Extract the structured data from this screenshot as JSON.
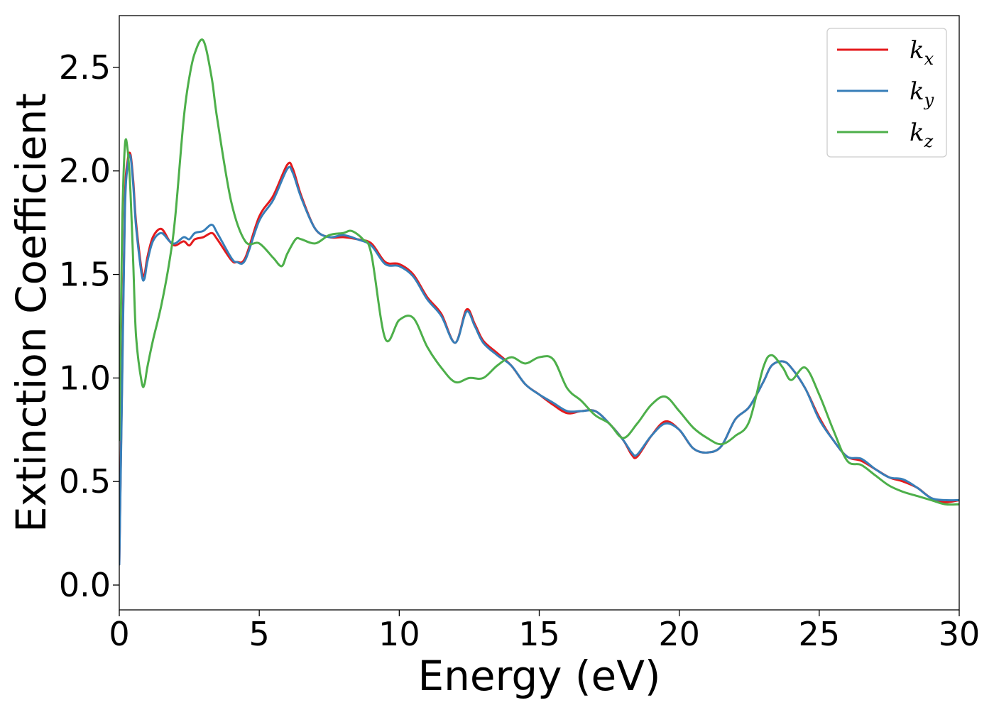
{
  "chart_data": {
    "type": "line",
    "xlabel": "Energy (eV)",
    "ylabel": "Extinction Coefficient",
    "xlim": [
      0,
      30
    ],
    "ylim": [
      -0.12,
      2.75
    ],
    "xticks": [
      0,
      5,
      10,
      15,
      20,
      25,
      30
    ],
    "yticks": [
      0.0,
      0.5,
      1.0,
      1.5,
      2.0,
      2.5
    ],
    "xtick_labels": [
      "0",
      "5",
      "10",
      "15",
      "20",
      "25",
      "30"
    ],
    "ytick_labels": [
      "0.0",
      "0.5",
      "1.0",
      "1.5",
      "2.0",
      "2.5"
    ],
    "grid": false,
    "legend_position": "top-right",
    "series": [
      {
        "name": "k_x",
        "label_main": "k",
        "label_sub": "x",
        "color": "#e41a1c",
        "x": [
          0,
          0.1,
          0.2,
          0.3,
          0.4,
          0.5,
          0.6,
          0.8,
          0.9,
          1.0,
          1.2,
          1.5,
          1.8,
          2.0,
          2.3,
          2.5,
          2.7,
          3.0,
          3.3,
          3.5,
          4.0,
          4.2,
          4.5,
          5.0,
          5.5,
          6.0,
          6.2,
          6.5,
          7.0,
          7.5,
          8.0,
          8.5,
          9.0,
          9.5,
          10.0,
          10.5,
          11.0,
          11.5,
          12.0,
          12.4,
          12.7,
          13.0,
          13.5,
          14.0,
          14.5,
          15.0,
          15.5,
          16.0,
          16.5,
          17.0,
          17.5,
          18.0,
          18.3,
          18.5,
          19.0,
          19.5,
          20.0,
          20.5,
          21.0,
          21.5,
          22.0,
          22.5,
          23.0,
          23.3,
          23.7,
          24.0,
          24.5,
          25.0,
          25.5,
          26.0,
          26.5,
          27.0,
          27.5,
          28.0,
          28.5,
          29.0,
          29.5,
          30.0
        ],
        "y": [
          0.1,
          1.0,
          1.85,
          2.05,
          2.08,
          1.95,
          1.75,
          1.52,
          1.5,
          1.58,
          1.68,
          1.72,
          1.66,
          1.64,
          1.66,
          1.64,
          1.67,
          1.68,
          1.7,
          1.67,
          1.57,
          1.56,
          1.58,
          1.78,
          1.88,
          2.03,
          2.01,
          1.88,
          1.72,
          1.68,
          1.68,
          1.67,
          1.65,
          1.56,
          1.55,
          1.5,
          1.39,
          1.31,
          1.17,
          1.33,
          1.26,
          1.18,
          1.12,
          1.06,
          0.97,
          0.92,
          0.87,
          0.83,
          0.84,
          0.84,
          0.78,
          0.7,
          0.63,
          0.62,
          0.72,
          0.79,
          0.75,
          0.66,
          0.64,
          0.67,
          0.8,
          0.86,
          0.98,
          1.06,
          1.08,
          1.05,
          0.95,
          0.81,
          0.7,
          0.62,
          0.6,
          0.56,
          0.52,
          0.5,
          0.47,
          0.42,
          0.4,
          0.41
        ]
      },
      {
        "name": "k_y",
        "label_main": "k",
        "label_sub": "y",
        "color": "#377eb8",
        "x": [
          0,
          0.1,
          0.2,
          0.3,
          0.4,
          0.5,
          0.6,
          0.8,
          0.9,
          1.0,
          1.2,
          1.5,
          1.8,
          2.0,
          2.3,
          2.5,
          2.7,
          3.0,
          3.3,
          3.5,
          4.0,
          4.2,
          4.5,
          5.0,
          5.5,
          6.0,
          6.2,
          6.5,
          7.0,
          7.5,
          8.0,
          8.5,
          9.0,
          9.5,
          10.0,
          10.5,
          11.0,
          11.5,
          12.0,
          12.4,
          12.7,
          13.0,
          13.5,
          14.0,
          14.5,
          15.0,
          15.5,
          16.0,
          16.5,
          17.0,
          17.5,
          18.0,
          18.3,
          18.5,
          19.0,
          19.5,
          20.0,
          20.5,
          21.0,
          21.5,
          22.0,
          22.5,
          23.0,
          23.3,
          23.7,
          24.0,
          24.5,
          25.0,
          25.5,
          26.0,
          26.5,
          27.0,
          27.5,
          28.0,
          28.5,
          29.0,
          29.5,
          30.0
        ],
        "y": [
          0.1,
          0.95,
          1.8,
          2.03,
          2.07,
          1.93,
          1.73,
          1.5,
          1.48,
          1.56,
          1.66,
          1.7,
          1.66,
          1.65,
          1.68,
          1.67,
          1.7,
          1.71,
          1.74,
          1.7,
          1.58,
          1.56,
          1.57,
          1.76,
          1.86,
          2.01,
          1.99,
          1.87,
          1.72,
          1.68,
          1.69,
          1.67,
          1.64,
          1.55,
          1.54,
          1.49,
          1.38,
          1.3,
          1.17,
          1.32,
          1.25,
          1.17,
          1.11,
          1.06,
          0.97,
          0.92,
          0.88,
          0.84,
          0.84,
          0.84,
          0.78,
          0.7,
          0.64,
          0.63,
          0.72,
          0.78,
          0.75,
          0.66,
          0.64,
          0.67,
          0.8,
          0.86,
          0.98,
          1.06,
          1.08,
          1.05,
          0.95,
          0.8,
          0.7,
          0.62,
          0.61,
          0.56,
          0.52,
          0.51,
          0.47,
          0.42,
          0.41,
          0.41
        ]
      },
      {
        "name": "k_z",
        "label_main": "k",
        "label_sub": "z",
        "color": "#4daf4a",
        "x": [
          0,
          0.1,
          0.2,
          0.3,
          0.4,
          0.5,
          0.6,
          0.8,
          0.9,
          1.0,
          1.2,
          1.5,
          1.8,
          2.0,
          2.3,
          2.5,
          2.7,
          3.0,
          3.3,
          3.5,
          4.0,
          4.5,
          5.0,
          5.5,
          5.8,
          6.0,
          6.3,
          6.5,
          7.0,
          7.5,
          8.0,
          8.3,
          8.7,
          9.0,
          9.5,
          10.0,
          10.5,
          11.0,
          11.5,
          12.0,
          12.5,
          13.0,
          13.5,
          14.0,
          14.5,
          15.0,
          15.5,
          16.0,
          16.5,
          17.0,
          17.5,
          18.0,
          18.5,
          19.0,
          19.5,
          20.0,
          20.5,
          21.0,
          21.5,
          22.0,
          22.5,
          23.0,
          23.3,
          23.7,
          24.0,
          24.5,
          25.0,
          25.5,
          26.0,
          26.5,
          27.0,
          27.5,
          28.0,
          28.5,
          29.0,
          29.5,
          30.0
        ],
        "y": [
          0.7,
          1.7,
          2.12,
          2.1,
          1.9,
          1.55,
          1.2,
          0.98,
          0.97,
          1.05,
          1.18,
          1.35,
          1.57,
          1.78,
          2.25,
          2.45,
          2.57,
          2.63,
          2.45,
          2.25,
          1.85,
          1.66,
          1.65,
          1.58,
          1.54,
          1.6,
          1.67,
          1.67,
          1.65,
          1.69,
          1.7,
          1.71,
          1.67,
          1.6,
          1.19,
          1.28,
          1.29,
          1.15,
          1.05,
          0.98,
          1.0,
          1.0,
          1.06,
          1.1,
          1.07,
          1.1,
          1.09,
          0.95,
          0.89,
          0.82,
          0.78,
          0.71,
          0.78,
          0.87,
          0.91,
          0.84,
          0.76,
          0.71,
          0.68,
          0.72,
          0.79,
          1.05,
          1.11,
          1.05,
          0.99,
          1.05,
          0.92,
          0.75,
          0.6,
          0.58,
          0.53,
          0.48,
          0.45,
          0.43,
          0.41,
          0.39,
          0.39
        ]
      }
    ]
  }
}
